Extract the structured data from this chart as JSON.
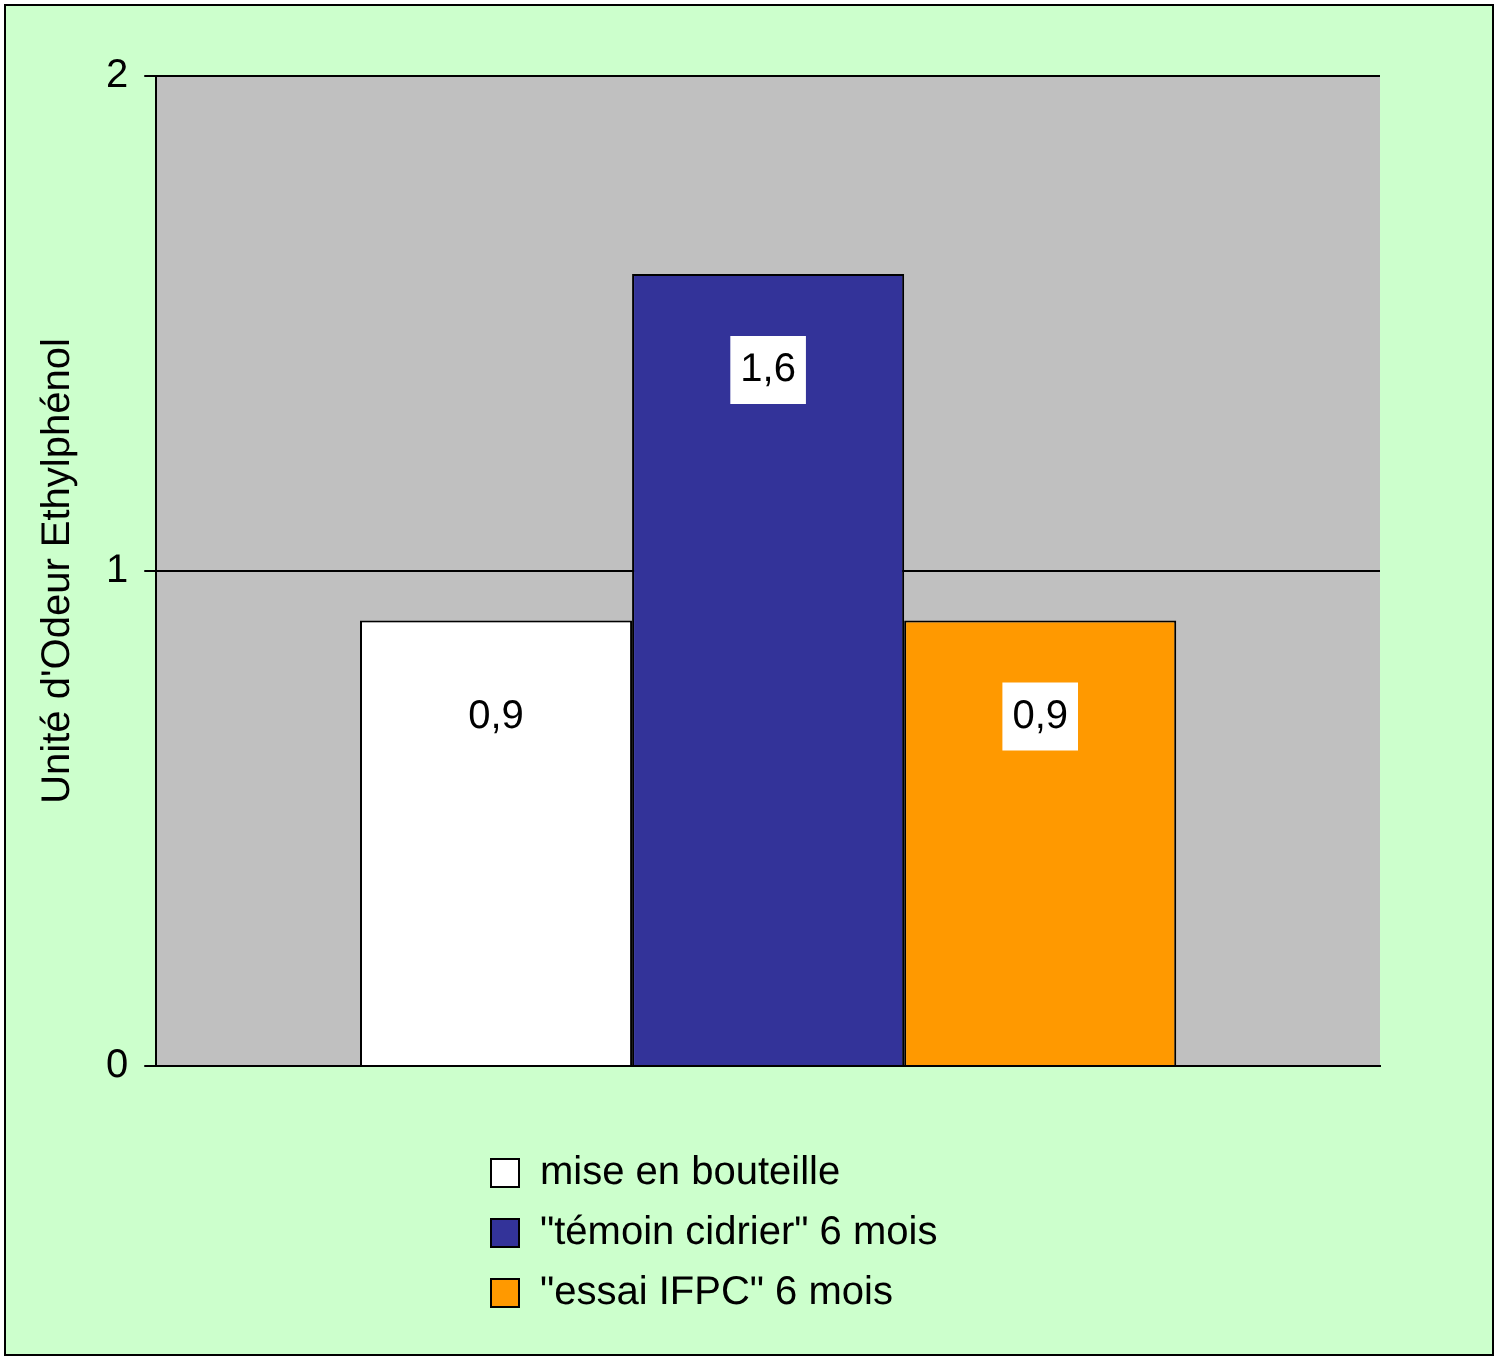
{
  "chart_data": {
    "type": "bar",
    "ylabel": "Unité d'Odeur Ethylphénol",
    "categories": [
      null
    ],
    "series": [
      {
        "name": "mise en bouteille",
        "color": "#ffffff",
        "values": [
          0.9
        ],
        "value_labels": [
          "0,9"
        ]
      },
      {
        "name": "\"témoin cidrier\" 6 mois",
        "color": "#333399",
        "values": [
          1.6
        ],
        "value_labels": [
          "1,6"
        ]
      },
      {
        "name": "\"essai IFPC\" 6 mois",
        "color": "#ff9900",
        "values": [
          0.9
        ],
        "value_labels": [
          "0,9"
        ]
      }
    ],
    "ylim": [
      0,
      2
    ],
    "yticks": [
      0,
      1,
      2
    ],
    "grid": "y",
    "legend": "bottom"
  }
}
